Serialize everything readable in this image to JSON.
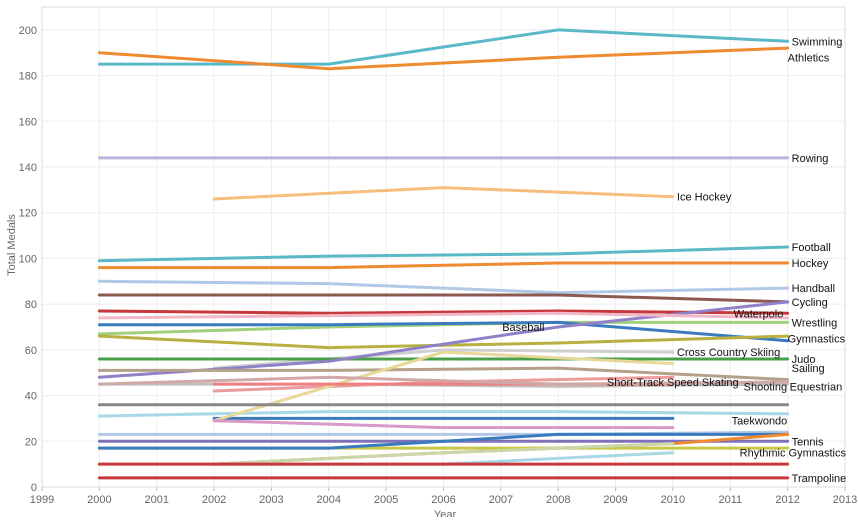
{
  "chart_data": {
    "type": "line",
    "title": "",
    "xlabel": "Year",
    "ylabel": "Total Medals",
    "xlim": [
      1999,
      2013
    ],
    "ylim": [
      0,
      210
    ],
    "x_ticks": [
      1999,
      2000,
      2001,
      2002,
      2003,
      2004,
      2005,
      2006,
      2007,
      2008,
      2009,
      2010,
      2011,
      2012,
      2013
    ],
    "y_ticks": [
      0,
      20,
      40,
      60,
      80,
      100,
      120,
      140,
      160,
      180,
      200
    ],
    "grid": true,
    "legend": "none",
    "series": [
      {
        "name": "Swimming",
        "color": "#5bb8c8",
        "label_at": [
          2012,
          195
        ],
        "points": [
          [
            2000,
            185
          ],
          [
            2004,
            185
          ],
          [
            2008,
            200
          ],
          [
            2012,
            195
          ]
        ]
      },
      {
        "name": "Athletics",
        "color": "#ef8a30",
        "label_at": [
          2012,
          188
        ],
        "points": [
          [
            2000,
            190
          ],
          [
            2004,
            183
          ],
          [
            2008,
            188
          ],
          [
            2012,
            192
          ]
        ]
      },
      {
        "name": "Rowing",
        "color": "#bfb1de",
        "label_at": [
          2012,
          144
        ],
        "points": [
          [
            2000,
            144
          ],
          [
            2004,
            144
          ],
          [
            2008,
            144
          ],
          [
            2012,
            144
          ]
        ]
      },
      {
        "name": "Ice Hockey",
        "color": "#f5be7c",
        "label_at": [
          2010,
          127
        ],
        "points": [
          [
            2002,
            126
          ],
          [
            2006,
            131
          ],
          [
            2010,
            127
          ]
        ]
      },
      {
        "name": "Football",
        "color": "#5bb8c8",
        "label_at": [
          2012,
          105
        ],
        "points": [
          [
            2000,
            99
          ],
          [
            2004,
            101
          ],
          [
            2008,
            102
          ],
          [
            2012,
            105
          ]
        ]
      },
      {
        "name": "Hockey",
        "color": "#ef8a30",
        "label_at": [
          2012,
          98
        ],
        "points": [
          [
            2000,
            96
          ],
          [
            2004,
            96
          ],
          [
            2008,
            98
          ],
          [
            2012,
            98
          ]
        ]
      },
      {
        "name": "Handball",
        "color": "#b1c8e6",
        "label_at": [
          2012,
          87
        ],
        "points": [
          [
            2000,
            90
          ],
          [
            2004,
            89
          ],
          [
            2008,
            85
          ],
          [
            2012,
            87
          ]
        ]
      },
      {
        "name": "Cycling",
        "color": "#8a5a50",
        "label_at": [
          2012,
          81
        ],
        "points": [
          [
            2000,
            84
          ],
          [
            2004,
            84
          ],
          [
            2008,
            84
          ],
          [
            2012,
            81
          ]
        ]
      },
      {
        "name": "Waterpolo",
        "color": "#c8383a",
        "label_at": [
          2012,
          76
        ],
        "points": [
          [
            2000,
            77
          ],
          [
            2004,
            76
          ],
          [
            2008,
            77
          ],
          [
            2012,
            76
          ]
        ]
      },
      {
        "name": "Wrestling",
        "color": "#a0d07c",
        "label_at": [
          2012,
          72
        ],
        "points": [
          [
            2000,
            67
          ],
          [
            2004,
            70
          ],
          [
            2008,
            72
          ],
          [
            2012,
            72
          ]
        ]
      },
      {
        "name": "Baseball",
        "color": "#3a7abf",
        "label_at": [
          2008,
          70
        ],
        "points": [
          [
            2000,
            71
          ],
          [
            2004,
            71
          ],
          [
            2008,
            72
          ],
          [
            2012,
            64
          ]
        ]
      },
      {
        "name": "Gymnastics",
        "color": "#b8b040",
        "label_at": [
          2012,
          65
        ],
        "points": [
          [
            2000,
            66
          ],
          [
            2004,
            61
          ],
          [
            2008,
            63
          ],
          [
            2012,
            66
          ]
        ]
      },
      {
        "name": "Cross Country Skiing",
        "color": "#cfcfcf",
        "label_at": [
          2010,
          59
        ],
        "points": [
          [
            2002,
            52
          ],
          [
            2006,
            60
          ],
          [
            2010,
            59
          ]
        ]
      },
      {
        "name": "Judo",
        "color": "#4aa04a",
        "label_at": [
          2012,
          56
        ],
        "points": [
          [
            2000,
            56
          ],
          [
            2004,
            56
          ],
          [
            2008,
            56
          ],
          [
            2012,
            56
          ]
        ]
      },
      {
        "name": "Sailing",
        "color": "#9080c8",
        "label_at": [
          2012,
          52
        ],
        "points": [
          [
            2000,
            48
          ],
          [
            2004,
            55
          ],
          [
            2008,
            70
          ],
          [
            2012,
            81
          ]
        ]
      },
      {
        "name": "Short-Track Speed Skating",
        "color": "#ee9b9b",
        "label_at": [
          2010,
          46
        ],
        "points": [
          [
            2002,
            42
          ],
          [
            2006,
            46
          ],
          [
            2010,
            48
          ]
        ]
      },
      {
        "name": "Shooting",
        "color": "#c0c0c0",
        "label_at": [
          2012,
          44
        ],
        "points": [
          [
            2000,
            45
          ],
          [
            2004,
            45
          ],
          [
            2008,
            44
          ],
          [
            2012,
            45
          ]
        ]
      },
      {
        "name": "Equestrian",
        "color": "#a8d8e6",
        "label_at": [
          2012,
          44
        ],
        "points": [
          [
            2000,
            31
          ],
          [
            2004,
            33
          ],
          [
            2008,
            33
          ],
          [
            2012,
            32
          ]
        ]
      },
      {
        "name": "Taekwondo",
        "color": "#3a7abf",
        "label_at": [
          2012,
          29
        ],
        "points": [
          [
            2002,
            30
          ],
          [
            2006,
            30
          ],
          [
            2010,
            30
          ]
        ]
      },
      {
        "name": "Tennis",
        "color": "#8070b8",
        "label_at": [
          2012,
          20
        ],
        "points": [
          [
            2000,
            20
          ],
          [
            2004,
            20
          ],
          [
            2008,
            20
          ],
          [
            2012,
            20
          ]
        ]
      },
      {
        "name": "Rhythmic Gymnastics",
        "color": "#c8c848",
        "label_at": [
          2012,
          15
        ],
        "points": [
          [
            2000,
            17
          ],
          [
            2004,
            17
          ],
          [
            2008,
            17
          ],
          [
            2012,
            17
          ]
        ]
      },
      {
        "name": "Trampoline",
        "color": "#c8383a",
        "label_at": [
          2012,
          4
        ],
        "points": [
          [
            2000,
            4
          ],
          [
            2004,
            4
          ],
          [
            2008,
            4
          ],
          [
            2012,
            4
          ]
        ]
      },
      {
        "name": "",
        "color": "#b5a08a",
        "points": [
          [
            2000,
            51
          ],
          [
            2004,
            51
          ],
          [
            2008,
            52
          ],
          [
            2012,
            47
          ]
        ]
      },
      {
        "name": "",
        "color": "#f2b8c8",
        "points": [
          [
            2000,
            74
          ],
          [
            2004,
            75
          ],
          [
            2008,
            76
          ],
          [
            2012,
            74
          ]
        ]
      },
      {
        "name": "",
        "color": "#e8d898",
        "points": [
          [
            2002,
            29
          ],
          [
            2006,
            59
          ],
          [
            2010,
            54
          ]
        ]
      },
      {
        "name": "",
        "color": "#f08080",
        "points": [
          [
            2002,
            45
          ],
          [
            2006,
            45
          ],
          [
            2010,
            45
          ]
        ]
      },
      {
        "name": "",
        "color": "#d0a8a8",
        "points": [
          [
            2000,
            45
          ],
          [
            2004,
            48
          ],
          [
            2008,
            45
          ],
          [
            2012,
            46
          ]
        ]
      },
      {
        "name": "",
        "color": "#d898c8",
        "points": [
          [
            2002,
            29
          ],
          [
            2006,
            26
          ],
          [
            2010,
            26
          ]
        ]
      },
      {
        "name": "",
        "color": "#b1c8e6",
        "points": [
          [
            2000,
            23
          ],
          [
            2004,
            23
          ],
          [
            2008,
            23
          ],
          [
            2012,
            24
          ]
        ]
      },
      {
        "name": "",
        "color": "#888888",
        "points": [
          [
            2000,
            36
          ],
          [
            2004,
            36
          ],
          [
            2008,
            36
          ],
          [
            2012,
            36
          ]
        ]
      },
      {
        "name": "",
        "color": "#3a7abf",
        "points": [
          [
            2000,
            17
          ],
          [
            2004,
            17
          ],
          [
            2008,
            23
          ],
          [
            2012,
            23
          ]
        ]
      },
      {
        "name": "",
        "color": "#ef8a30",
        "points": [
          [
            2002,
            10
          ],
          [
            2006,
            15
          ],
          [
            2010,
            19
          ],
          [
            2012,
            23
          ]
        ]
      },
      {
        "name": "",
        "color": "#c8d8a8",
        "points": [
          [
            2002,
            10
          ],
          [
            2006,
            15
          ],
          [
            2010,
            19
          ]
        ]
      },
      {
        "name": "",
        "color": "#a8d8e6",
        "points": [
          [
            2002,
            10
          ],
          [
            2006,
            10
          ],
          [
            2010,
            15
          ]
        ]
      },
      {
        "name": "",
        "color": "#c8383a",
        "points": [
          [
            2000,
            10
          ],
          [
            2004,
            10
          ],
          [
            2008,
            10
          ],
          [
            2012,
            10
          ]
        ]
      }
    ]
  }
}
